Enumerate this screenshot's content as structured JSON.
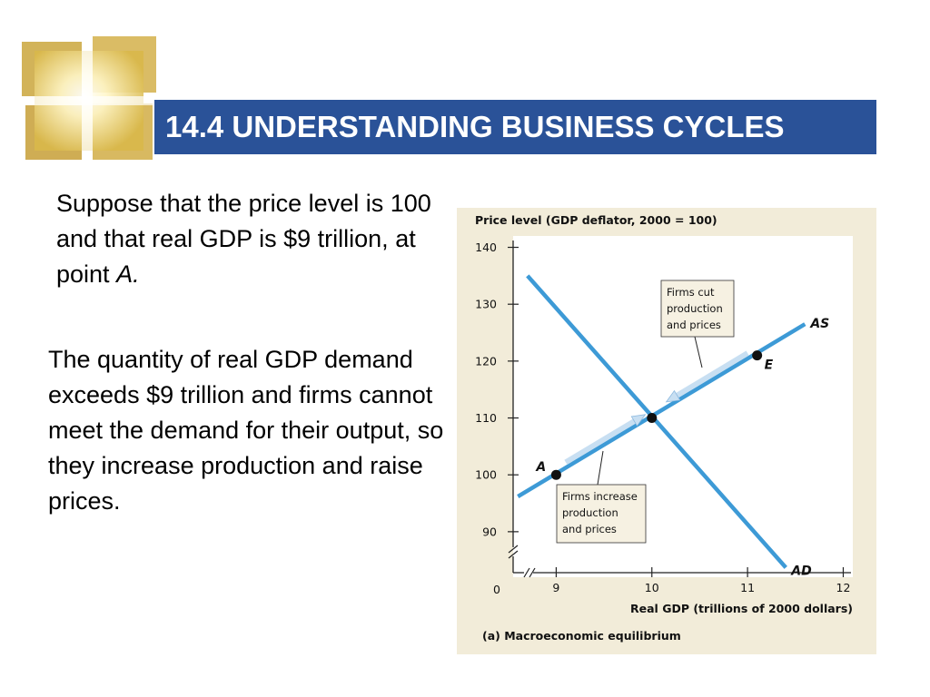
{
  "slide": {
    "title": "14.4 UNDERSTANDING BUSINESS CYCLES",
    "paragraph1_text": "Suppose that the price level is 100 and that real GDP is $9 trillion, at point ",
    "paragraph1_italic": "A.",
    "paragraph2": "The quantity of real GDP demand exceeds $9 trillion and firms cannot meet the demand for their output, so they increase production and raise prices."
  },
  "colors": {
    "title_bar": "#2a5298",
    "curve": "#3d9ad6",
    "panel": "#f2ecd9"
  },
  "chart_data": {
    "type": "line",
    "ylabel": "Price level (GDP deflator, 2000 = 100)",
    "xlabel": "Real GDP (trillions of 2000 dollars)",
    "caption": "(a)  Macroeconomic equilibrium",
    "origin_label": "0",
    "x_ticks": [
      9,
      10,
      11,
      12
    ],
    "y_ticks": [
      90,
      100,
      110,
      120,
      130,
      140
    ],
    "xlim": [
      8.55,
      12.1
    ],
    "ylim": [
      82,
      142
    ],
    "series": [
      {
        "name": "AS",
        "points": [
          [
            8.6,
            96.2
          ],
          [
            11.6,
            126.5
          ]
        ]
      },
      {
        "name": "AD",
        "points": [
          [
            8.7,
            135
          ],
          [
            11.4,
            83.7
          ]
        ]
      }
    ],
    "points": [
      {
        "label": "A",
        "x": 9.0,
        "y": 100.0,
        "show_label": true
      },
      {
        "label": "",
        "x": 10.0,
        "y": 110.0,
        "show_label": false
      },
      {
        "label": "E",
        "x": 11.1,
        "y": 121.0,
        "show_label": true
      }
    ],
    "annotations": [
      {
        "id": "cut",
        "lines": [
          "Firms cut",
          "production",
          "and prices"
        ]
      },
      {
        "id": "increase",
        "lines": [
          "Firms increase",
          "production",
          "and prices"
        ]
      }
    ]
  }
}
